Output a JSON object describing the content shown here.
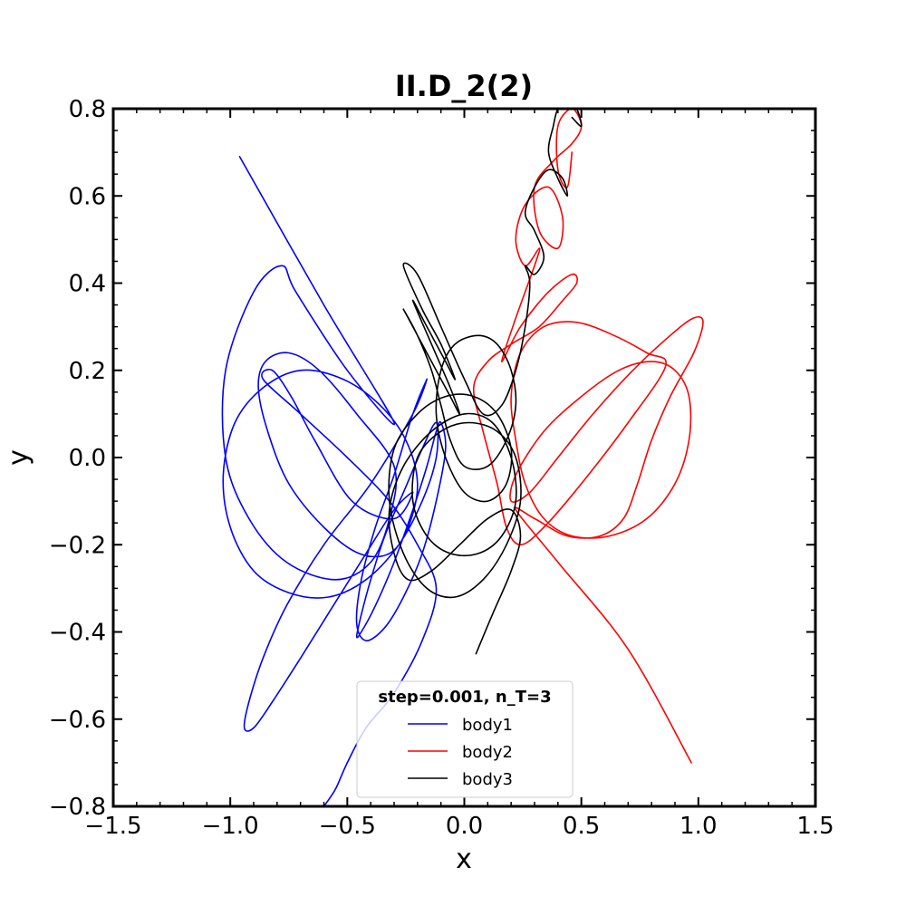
{
  "chart_data": {
    "type": "line",
    "title": "II.D_2(2)",
    "xlabel": "x",
    "ylabel": "y",
    "xlim": [
      -1.5,
      1.5
    ],
    "ylim": [
      -0.8,
      0.8
    ],
    "xticks": [
      -1.5,
      -1.0,
      -0.5,
      0.0,
      0.5,
      1.0,
      1.5
    ],
    "xtick_labels": [
      "−1.5",
      "−1.0",
      "−0.5",
      "0.0",
      "0.5",
      "1.0",
      "1.5"
    ],
    "yticks": [
      -0.8,
      -0.6,
      -0.4,
      -0.2,
      0.0,
      0.2,
      0.4,
      0.6,
      0.8
    ],
    "ytick_labels": [
      "−0.8",
      "−0.6",
      "−0.4",
      "−0.2",
      "0.0",
      "0.2",
      "0.4",
      "0.6",
      "0.8"
    ],
    "grid": false,
    "legend": {
      "title": "step=0.001, n_T=3",
      "placement": "lower-center"
    },
    "series": [
      {
        "name": "body1",
        "color": "#0000ff",
        "x": [
          -0.96,
          -0.6,
          -0.3,
          -0.5,
          -0.72,
          -0.78,
          -0.9,
          -1.02,
          -1.02,
          -0.92,
          -0.76,
          -0.55,
          -0.4,
          -0.32,
          -0.3,
          -0.46,
          -0.62,
          -0.75,
          -0.85,
          -0.88,
          -0.84,
          -0.75,
          -0.6,
          -0.45,
          -0.32,
          -0.24,
          -0.2,
          -0.25,
          -0.36,
          -0.52,
          -0.7,
          -0.86,
          -0.98,
          -1.03,
          -1.0,
          -0.9,
          -0.75,
          -0.58,
          -0.42,
          -0.28,
          -0.18,
          -0.12,
          -0.12,
          -0.18,
          -0.26,
          -0.34,
          -0.4,
          -0.44,
          -0.46,
          -0.44,
          -0.38,
          -0.3,
          -0.22,
          -0.16,
          -0.12,
          -0.1,
          -0.08,
          -0.12,
          -0.18,
          -0.26,
          -0.34,
          -0.42,
          -0.46,
          -0.44,
          -0.38,
          -0.3,
          -0.22,
          -0.16,
          -0.22,
          -0.4,
          -0.6,
          -0.76,
          -0.86,
          -0.92,
          -0.94,
          -0.9,
          -0.82,
          -0.7,
          -0.56,
          -0.42,
          -0.3,
          -0.22,
          -0.3,
          -0.48,
          -0.64,
          -0.74,
          -0.82,
          -0.86,
          -0.7,
          -0.5,
          -0.32,
          -0.2,
          -0.12,
          -0.18,
          -0.3,
          -0.42,
          -0.5,
          -0.55,
          -0.6
        ],
        "y": [
          0.69,
          0.35,
          0.08,
          0.2,
          0.38,
          0.44,
          0.38,
          0.2,
          0.0,
          -0.14,
          -0.24,
          -0.28,
          -0.24,
          -0.14,
          -0.02,
          0.1,
          0.2,
          0.24,
          0.22,
          0.16,
          0.06,
          -0.06,
          -0.16,
          -0.22,
          -0.22,
          -0.16,
          -0.06,
          0.04,
          0.12,
          0.18,
          0.2,
          0.16,
          0.08,
          -0.04,
          -0.16,
          -0.26,
          -0.31,
          -0.32,
          -0.28,
          -0.2,
          -0.1,
          0.0,
          0.08,
          0.02,
          -0.08,
          -0.18,
          -0.28,
          -0.36,
          -0.41,
          -0.4,
          -0.34,
          -0.24,
          -0.12,
          -0.02,
          0.06,
          0.08,
          0.02,
          -0.1,
          -0.22,
          -0.32,
          -0.39,
          -0.42,
          -0.38,
          -0.28,
          -0.16,
          -0.04,
          0.1,
          0.18,
          0.1,
          -0.06,
          -0.2,
          -0.34,
          -0.46,
          -0.56,
          -0.62,
          -0.62,
          -0.56,
          -0.46,
          -0.34,
          -0.22,
          -0.12,
          -0.08,
          -0.14,
          -0.1,
          0.04,
          0.14,
          0.2,
          0.18,
          0.1,
          0.0,
          -0.1,
          -0.2,
          -0.3,
          -0.42,
          -0.54,
          -0.62,
          -0.7,
          -0.76,
          -0.8
        ]
      },
      {
        "name": "body2",
        "color": "#ff0000",
        "x": [
          0.97,
          0.7,
          0.4,
          0.22,
          0.3,
          0.44,
          0.58,
          0.68,
          0.74,
          0.8,
          0.88,
          0.98,
          1.02,
          0.98,
          0.88,
          0.72,
          0.55,
          0.4,
          0.28,
          0.2,
          0.22,
          0.34,
          0.5,
          0.66,
          0.8,
          0.9,
          0.96,
          0.96,
          0.9,
          0.78,
          0.62,
          0.46,
          0.34,
          0.26,
          0.22,
          0.2,
          0.24,
          0.34,
          0.48,
          0.64,
          0.78,
          0.86,
          0.7,
          0.5,
          0.34,
          0.24,
          0.18,
          0.14,
          0.08,
          0.04,
          0.1,
          0.2,
          0.32,
          0.42,
          0.48,
          0.46,
          0.36,
          0.24,
          0.16,
          0.22,
          0.3,
          0.32,
          0.26,
          0.22,
          0.26,
          0.36,
          0.42,
          0.4,
          0.32,
          0.3,
          0.38,
          0.46,
          0.5,
          0.46,
          0.4,
          0.4,
          0.44,
          0.46
        ],
        "y": [
          -0.7,
          -0.44,
          -0.24,
          -0.12,
          -0.14,
          -0.18,
          -0.18,
          -0.14,
          -0.06,
          0.04,
          0.14,
          0.24,
          0.31,
          0.32,
          0.28,
          0.2,
          0.1,
          0.0,
          -0.08,
          -0.1,
          -0.04,
          0.06,
          0.14,
          0.2,
          0.22,
          0.2,
          0.14,
          0.04,
          -0.06,
          -0.14,
          -0.18,
          -0.18,
          -0.14,
          -0.06,
          0.04,
          0.14,
          0.24,
          0.3,
          0.31,
          0.28,
          0.24,
          0.21,
          0.08,
          -0.06,
          -0.16,
          -0.2,
          -0.16,
          -0.06,
          0.06,
          0.16,
          0.22,
          0.26,
          0.3,
          0.36,
          0.4,
          0.42,
          0.38,
          0.3,
          0.22,
          0.32,
          0.44,
          0.48,
          0.44,
          0.5,
          0.58,
          0.62,
          0.55,
          0.48,
          0.52,
          0.62,
          0.68,
          0.72,
          0.76,
          0.8,
          0.76,
          0.66,
          0.62,
          0.7
        ]
      },
      {
        "name": "body3",
        "color": "#000000",
        "x": [
          0.05,
          0.12,
          0.2,
          0.24,
          0.2,
          0.1,
          -0.02,
          -0.14,
          -0.24,
          -0.3,
          -0.32,
          -0.26,
          -0.14,
          0.0,
          0.12,
          0.2,
          0.22,
          0.16,
          0.06,
          -0.06,
          -0.16,
          -0.22,
          -0.2,
          -0.1,
          0.02,
          0.14,
          0.22,
          0.24,
          0.18,
          0.08,
          -0.04,
          -0.16,
          -0.26,
          -0.32,
          -0.3,
          -0.2,
          -0.08,
          0.04,
          0.14,
          0.2,
          0.18,
          0.1,
          0.0,
          -0.08,
          -0.12,
          -0.1,
          -0.04,
          0.06,
          0.14,
          0.2,
          0.22,
          0.18,
          0.1,
          0.0,
          -0.06,
          -0.1,
          -0.14,
          -0.2,
          -0.26,
          -0.22,
          -0.14,
          -0.06,
          -0.02,
          -0.06,
          -0.14,
          -0.22,
          -0.16,
          -0.08,
          -0.04,
          -0.1,
          -0.18,
          -0.26,
          -0.2,
          -0.1,
          0.0,
          0.08,
          0.16,
          0.22,
          0.26,
          0.28,
          0.26,
          0.3,
          0.34,
          0.3,
          0.26,
          0.3,
          0.36,
          0.42,
          0.44,
          0.4,
          0.36,
          0.38,
          0.4,
          0.44,
          0.48,
          0.5,
          0.46
        ],
        "y": [
          -0.45,
          -0.36,
          -0.26,
          -0.18,
          -0.12,
          -0.14,
          -0.2,
          -0.26,
          -0.28,
          -0.22,
          -0.12,
          -0.02,
          0.06,
          0.1,
          0.08,
          0.0,
          -0.1,
          -0.18,
          -0.22,
          -0.22,
          -0.18,
          -0.1,
          0.0,
          0.06,
          0.08,
          0.06,
          0.0,
          -0.1,
          -0.2,
          -0.28,
          -0.32,
          -0.3,
          -0.22,
          -0.1,
          0.02,
          0.1,
          0.14,
          0.14,
          0.1,
          0.02,
          -0.06,
          -0.1,
          -0.08,
          0.0,
          0.1,
          0.2,
          0.26,
          0.28,
          0.26,
          0.2,
          0.12,
          0.04,
          -0.02,
          -0.02,
          0.04,
          0.12,
          0.2,
          0.28,
          0.34,
          0.3,
          0.22,
          0.14,
          0.1,
          0.16,
          0.26,
          0.36,
          0.3,
          0.22,
          0.18,
          0.26,
          0.34,
          0.44,
          0.42,
          0.3,
          0.18,
          0.1,
          0.12,
          0.2,
          0.3,
          0.4,
          0.44,
          0.42,
          0.46,
          0.52,
          0.56,
          0.62,
          0.66,
          0.64,
          0.6,
          0.64,
          0.7,
          0.76,
          0.8,
          0.82,
          0.8,
          0.76,
          0.78
        ]
      }
    ]
  }
}
